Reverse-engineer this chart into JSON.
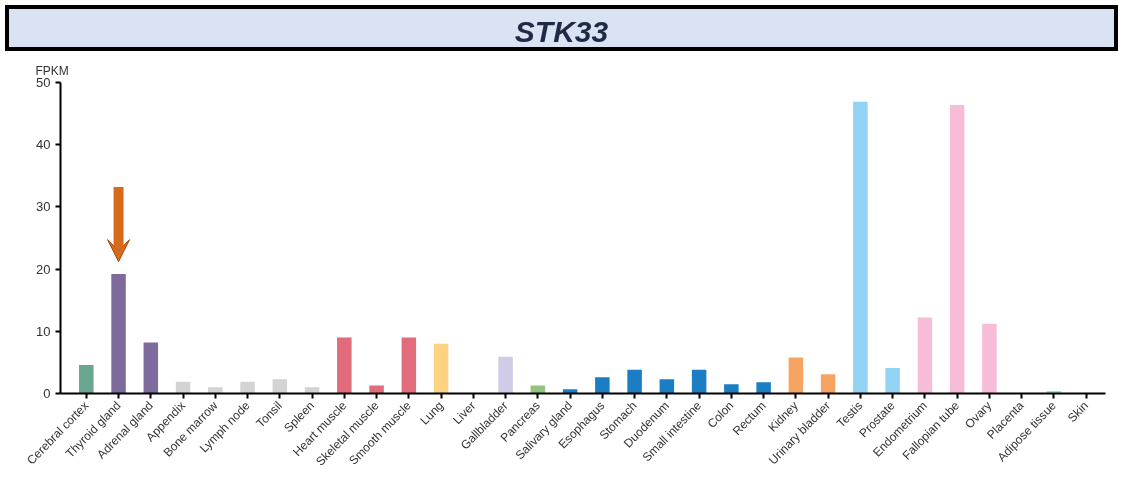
{
  "chart_data": {
    "type": "bar",
    "title": "STK33",
    "ylabel": "FPKM",
    "categories": [
      "Cerebral cortex",
      "Thyroid gland",
      "Adrenal gland",
      "Appendix",
      "Bone marrow",
      "Lymph node",
      "Tonsil",
      "Spleen",
      "Heart muscle",
      "Skeletal muscle",
      "Smooth muscle",
      "Lung",
      "Liver",
      "Gallbladder",
      "Pancreas",
      "Salivary gland",
      "Esophagus",
      "Stomach",
      "Duodenum",
      "Small intestine",
      "Colon",
      "Rectum",
      "Kidney",
      "Urinary bladder",
      "Testis",
      "Prostate",
      "Endometrium",
      "Fallopian tube",
      "Ovary",
      "Placenta",
      "Adipose tissue",
      "Skin"
    ],
    "values": [
      4.6,
      19.2,
      8.2,
      1.9,
      1.0,
      1.9,
      2.3,
      1.0,
      9.0,
      1.3,
      9.0,
      8.0,
      0,
      5.9,
      1.3,
      0.7,
      2.6,
      3.8,
      2.3,
      3.8,
      1.5,
      1.8,
      5.8,
      3.1,
      46.9,
      4.1,
      12.2,
      46.4,
      11.2,
      0,
      0.4,
      0
    ],
    "colors": [
      "#6aa58f",
      "#7e6b9e",
      "#7e6b9e",
      "#d3d3d3",
      "#d3d3d3",
      "#d3d3d3",
      "#d3d3d3",
      "#d3d3d3",
      "#e06c7c",
      "#e06c7c",
      "#e06c7c",
      "#fcd380",
      "#fcd380",
      "#d0cbe6",
      "#93c47d",
      "#1b7dc4",
      "#1b7dc4",
      "#1b7dc4",
      "#1b7dc4",
      "#1b7dc4",
      "#1b7dc4",
      "#1b7dc4",
      "#f6a462",
      "#f6a462",
      "#92d2f2",
      "#92d2f2",
      "#f7bdd8",
      "#f7bdd8",
      "#f7bdd8",
      "#f7bdd8",
      "#a8dcc8",
      "#d3d3d3"
    ],
    "ylim": [
      0,
      50
    ],
    "yticks": [
      0,
      10,
      20,
      30,
      40,
      50
    ],
    "grid": false
  }
}
